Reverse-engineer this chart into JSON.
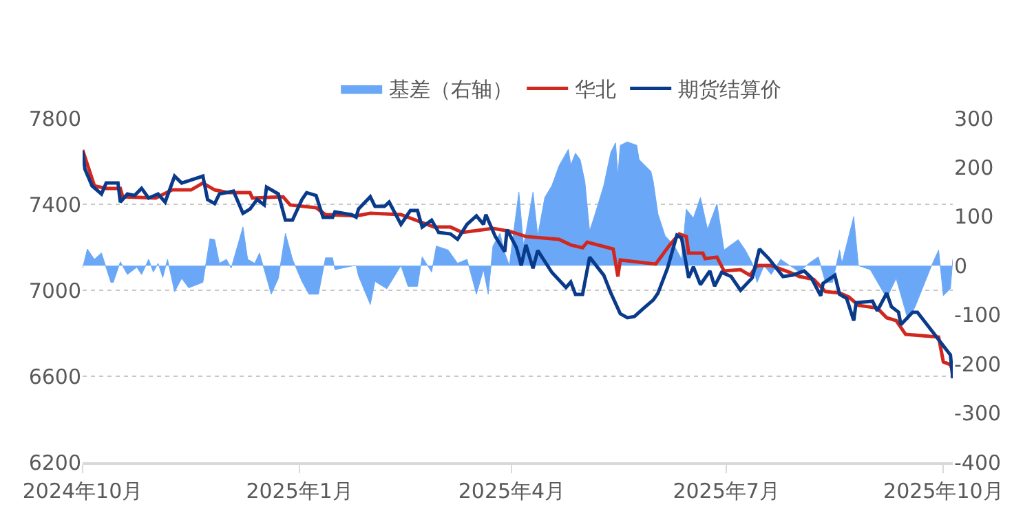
{
  "chart_data": {
    "type": "line",
    "legend": "top",
    "grid": "y",
    "xlim": [
      "2024-10-01",
      "2025-10-05"
    ],
    "xticks": [
      {
        "value": "2024-10-01",
        "label": "2024年10月"
      },
      {
        "value": "2025-01-01",
        "label": "2025年1月"
      },
      {
        "value": "2025-04-01",
        "label": "2025年4月"
      },
      {
        "value": "2025-07-01",
        "label": "2025年7月"
      },
      {
        "value": "2025-10-01",
        "label": "2025年10月"
      }
    ],
    "ylim": [
      6200,
      7800
    ],
    "yticks": [
      6200,
      6600,
      7000,
      7400,
      7800
    ],
    "y2lim": [
      -400,
      300
    ],
    "y2ticks": [
      -400,
      -300,
      -200,
      -100,
      0,
      100,
      200,
      300
    ],
    "series": [
      {
        "name": "基差（右轴）",
        "type": "area",
        "axis": "y2",
        "color": "#6aa8f7",
        "x": [
          "2024-10-01",
          "2024-10-03",
          "2024-10-06",
          "2024-10-09",
          "2024-10-13",
          "2024-10-14",
          "2024-10-17",
          "2024-10-20",
          "2024-10-24",
          "2024-10-26",
          "2024-10-29",
          "2024-10-31",
          "2024-11-02",
          "2024-11-04",
          "2024-11-06",
          "2024-11-09",
          "2024-11-12",
          "2024-11-15",
          "2024-11-21",
          "2024-11-24",
          "2024-11-26",
          "2024-11-28",
          "2024-12-01",
          "2024-12-03",
          "2024-12-08",
          "2024-12-10",
          "2024-12-13",
          "2024-12-15",
          "2024-12-20",
          "2024-12-23",
          "2024-12-26",
          "2024-12-29",
          "2025-01-02",
          "2025-01-05",
          "2025-01-09",
          "2025-01-12",
          "2025-01-15",
          "2025-01-16",
          "2025-01-24",
          "2025-01-25",
          "2025-01-26",
          "2025-01-31",
          "2025-02-02",
          "2025-02-07",
          "2025-02-13",
          "2025-02-16",
          "2025-02-20",
          "2025-02-22",
          "2025-02-26",
          "2025-02-28",
          "2025-03-05",
          "2025-03-09",
          "2025-03-13",
          "2025-03-17",
          "2025-03-20",
          "2025-03-22",
          "2025-03-24",
          "2025-03-27",
          "2025-03-29",
          "2025-03-31",
          "2025-04-01",
          "2025-04-04",
          "2025-04-06",
          "2025-04-10",
          "2025-04-12",
          "2025-04-15",
          "2025-04-18",
          "2025-04-21",
          "2025-04-25",
          "2025-04-26",
          "2025-04-28",
          "2025-04-30",
          "2025-05-02",
          "2025-05-04",
          "2025-05-06",
          "2025-05-10",
          "2025-05-13",
          "2025-05-15",
          "2025-05-16",
          "2025-05-17",
          "2025-05-20",
          "2025-05-24",
          "2025-05-25",
          "2025-05-30",
          "2025-05-31",
          "2025-06-02",
          "2025-06-05",
          "2025-06-09",
          "2025-06-12",
          "2025-06-14",
          "2025-06-17",
          "2025-06-20",
          "2025-06-23",
          "2025-06-27",
          "2025-06-30",
          "2025-07-06",
          "2025-07-09",
          "2025-07-12",
          "2025-07-14",
          "2025-07-17",
          "2025-07-20",
          "2025-07-24",
          "2025-07-28",
          "2025-08-01",
          "2025-08-05",
          "2025-08-09",
          "2025-08-12",
          "2025-08-15",
          "2025-08-18",
          "2025-08-19",
          "2025-08-24",
          "2025-08-26",
          "2025-08-31",
          "2025-09-07",
          "2025-09-11",
          "2025-09-16",
          "2025-09-19",
          "2025-09-26",
          "2025-09-29",
          "2025-10-01",
          "2025-10-04",
          "2025-10-05"
        ],
        "values": [
          -5,
          34,
          13,
          26,
          -34,
          -34,
          8,
          -18,
          -3,
          -18,
          13,
          -13,
          5,
          -24,
          13,
          -53,
          -26,
          -45,
          -34,
          55,
          53,
          5,
          13,
          -5,
          79,
          13,
          5,
          26,
          -58,
          -26,
          66,
          13,
          -32,
          -58,
          -58,
          16,
          16,
          -8,
          0,
          0,
          -21,
          -79,
          -32,
          -47,
          0,
          -42,
          -42,
          18,
          -13,
          40,
          32,
          5,
          13,
          -58,
          -8,
          -58,
          40,
          66,
          26,
          0,
          40,
          150,
          40,
          150,
          61,
          139,
          163,
          203,
          237,
          205,
          229,
          216,
          171,
          71,
          100,
          163,
          231,
          250,
          184,
          245,
          252,
          245,
          216,
          192,
          171,
          105,
          61,
          40,
          13,
          115,
          97,
          139,
          74,
          126,
          32,
          53,
          32,
          5,
          -34,
          0,
          -18,
          13,
          0,
          -13,
          5,
          18,
          -34,
          -34,
          32,
          5,
          100,
          0,
          -8,
          -66,
          -26,
          -110,
          -84,
          0,
          32,
          -61,
          -47,
          13
        ]
      },
      {
        "name": "华北",
        "color": "#d0281e",
        "x": [
          "2024-10-01",
          "2024-10-06",
          "2024-10-11",
          "2024-10-17",
          "2024-10-18",
          "2024-11-01",
          "2024-11-08",
          "2024-11-16",
          "2024-11-21",
          "2024-11-26",
          "2024-12-02",
          "2024-12-11",
          "2024-12-12",
          "2024-12-25",
          "2024-12-28",
          "2025-01-08",
          "2025-01-12",
          "2025-01-25",
          "2025-01-31",
          "2025-02-13",
          "2025-02-27",
          "2025-03-06",
          "2025-03-11",
          "2025-03-24",
          "2025-03-31",
          "2025-04-07",
          "2025-04-21",
          "2025-04-26",
          "2025-05-01",
          "2025-05-03",
          "2025-05-14",
          "2025-05-16",
          "2025-05-17",
          "2025-06-01",
          "2025-06-07",
          "2025-06-11",
          "2025-06-14",
          "2025-06-15",
          "2025-06-21",
          "2025-06-22",
          "2025-06-27",
          "2025-06-30",
          "2025-07-07",
          "2025-07-11",
          "2025-07-14",
          "2025-07-20",
          "2025-07-28",
          "2025-08-01",
          "2025-08-07",
          "2025-08-12",
          "2025-08-18",
          "2025-08-22",
          "2025-08-26",
          "2025-09-03",
          "2025-09-07",
          "2025-09-11",
          "2025-09-15",
          "2025-09-29",
          "2025-10-01",
          "2025-10-04",
          "2025-10-05"
        ],
        "values": [
          7653,
          7486,
          7474,
          7474,
          7435,
          7429,
          7467,
          7467,
          7499,
          7467,
          7454,
          7454,
          7429,
          7435,
          7397,
          7384,
          7352,
          7346,
          7358,
          7352,
          7294,
          7294,
          7269,
          7288,
          7275,
          7250,
          7237,
          7211,
          7198,
          7224,
          7192,
          7064,
          7141,
          7122,
          7211,
          7262,
          7250,
          7173,
          7173,
          7147,
          7154,
          7090,
          7096,
          7070,
          7115,
          7115,
          7083,
          7064,
          7051,
          6994,
          6987,
          6968,
          6930,
          6917,
          6872,
          6859,
          6795,
          6782,
          6667,
          6654,
          6622
        ]
      },
      {
        "name": "期货结算价",
        "color": "#0a3a8a",
        "x": [
          "2024-10-01",
          "2024-10-02",
          "2024-10-05",
          "2024-10-09",
          "2024-10-11",
          "2024-10-16",
          "2024-10-17",
          "2024-10-20",
          "2024-10-23",
          "2024-10-26",
          "2024-10-29",
          "2024-11-02",
          "2024-11-05",
          "2024-11-09",
          "2024-11-12",
          "2024-11-21",
          "2024-11-23",
          "2024-11-26",
          "2024-11-28",
          "2024-12-04",
          "2024-12-08",
          "2024-12-11",
          "2024-12-14",
          "2024-12-17",
          "2024-12-18",
          "2024-12-23",
          "2024-12-26",
          "2024-12-29",
          "2025-01-02",
          "2025-01-04",
          "2025-01-08",
          "2025-01-11",
          "2025-01-15",
          "2025-01-16",
          "2025-01-23",
          "2025-01-25",
          "2025-01-26",
          "2025-01-31",
          "2025-02-02",
          "2025-02-06",
          "2025-02-08",
          "2025-02-13",
          "2025-02-17",
          "2025-02-20",
          "2025-02-22",
          "2025-02-26",
          "2025-03-01",
          "2025-03-06",
          "2025-03-09",
          "2025-03-13",
          "2025-03-17",
          "2025-03-20",
          "2025-03-21",
          "2025-03-25",
          "2025-03-29",
          "2025-03-30",
          "2025-04-03",
          "2025-04-05",
          "2025-04-07",
          "2025-04-10",
          "2025-04-12",
          "2025-04-18",
          "2025-04-24",
          "2025-04-26",
          "2025-04-28",
          "2025-05-01",
          "2025-05-04",
          "2025-05-10",
          "2025-05-13",
          "2025-05-17",
          "2025-05-20",
          "2025-05-23",
          "2025-05-27",
          "2025-05-31",
          "2025-06-02",
          "2025-06-06",
          "2025-06-10",
          "2025-06-12",
          "2025-06-15",
          "2025-06-17",
          "2025-06-20",
          "2025-06-24",
          "2025-06-26",
          "2025-06-29",
          "2025-07-03",
          "2025-07-07",
          "2025-07-12",
          "2025-07-15",
          "2025-07-19",
          "2025-07-25",
          "2025-07-29",
          "2025-08-03",
          "2025-08-06",
          "2025-08-10",
          "2025-08-11",
          "2025-08-16",
          "2025-08-18",
          "2025-08-21",
          "2025-08-24",
          "2025-08-25",
          "2025-09-01",
          "2025-09-03",
          "2025-09-07",
          "2025-09-09",
          "2025-09-12",
          "2025-09-13",
          "2025-09-18",
          "2025-09-20",
          "2025-09-25",
          "2025-10-04",
          "2025-10-05"
        ],
        "values": [
          7646,
          7563,
          7486,
          7448,
          7499,
          7499,
          7410,
          7448,
          7441,
          7474,
          7429,
          7448,
          7410,
          7531,
          7499,
          7531,
          7422,
          7403,
          7448,
          7461,
          7358,
          7378,
          7422,
          7397,
          7480,
          7448,
          7326,
          7326,
          7422,
          7454,
          7441,
          7339,
          7339,
          7365,
          7352,
          7340,
          7378,
          7435,
          7390,
          7390,
          7410,
          7307,
          7371,
          7371,
          7294,
          7326,
          7269,
          7262,
          7237,
          7307,
          7346,
          7307,
          7352,
          7250,
          7179,
          7282,
          7198,
          7115,
          7211,
          7102,
          7185,
          7083,
          7013,
          7038,
          6981,
          6981,
          7154,
          7070,
          6987,
          6891,
          6872,
          6878,
          6917,
          6955,
          6987,
          7102,
          7256,
          7243,
          7058,
          7109,
          7026,
          7090,
          7019,
          7083,
          7064,
          7000,
          7058,
          7192,
          7147,
          7064,
          7070,
          7090,
          7058,
          6974,
          7032,
          7070,
          6981,
          6962,
          6859,
          6942,
          6949,
          6904,
          6987,
          6923,
          6898,
          6840,
          6898,
          6898,
          6827,
          6699,
          6590
        ]
      }
    ]
  }
}
